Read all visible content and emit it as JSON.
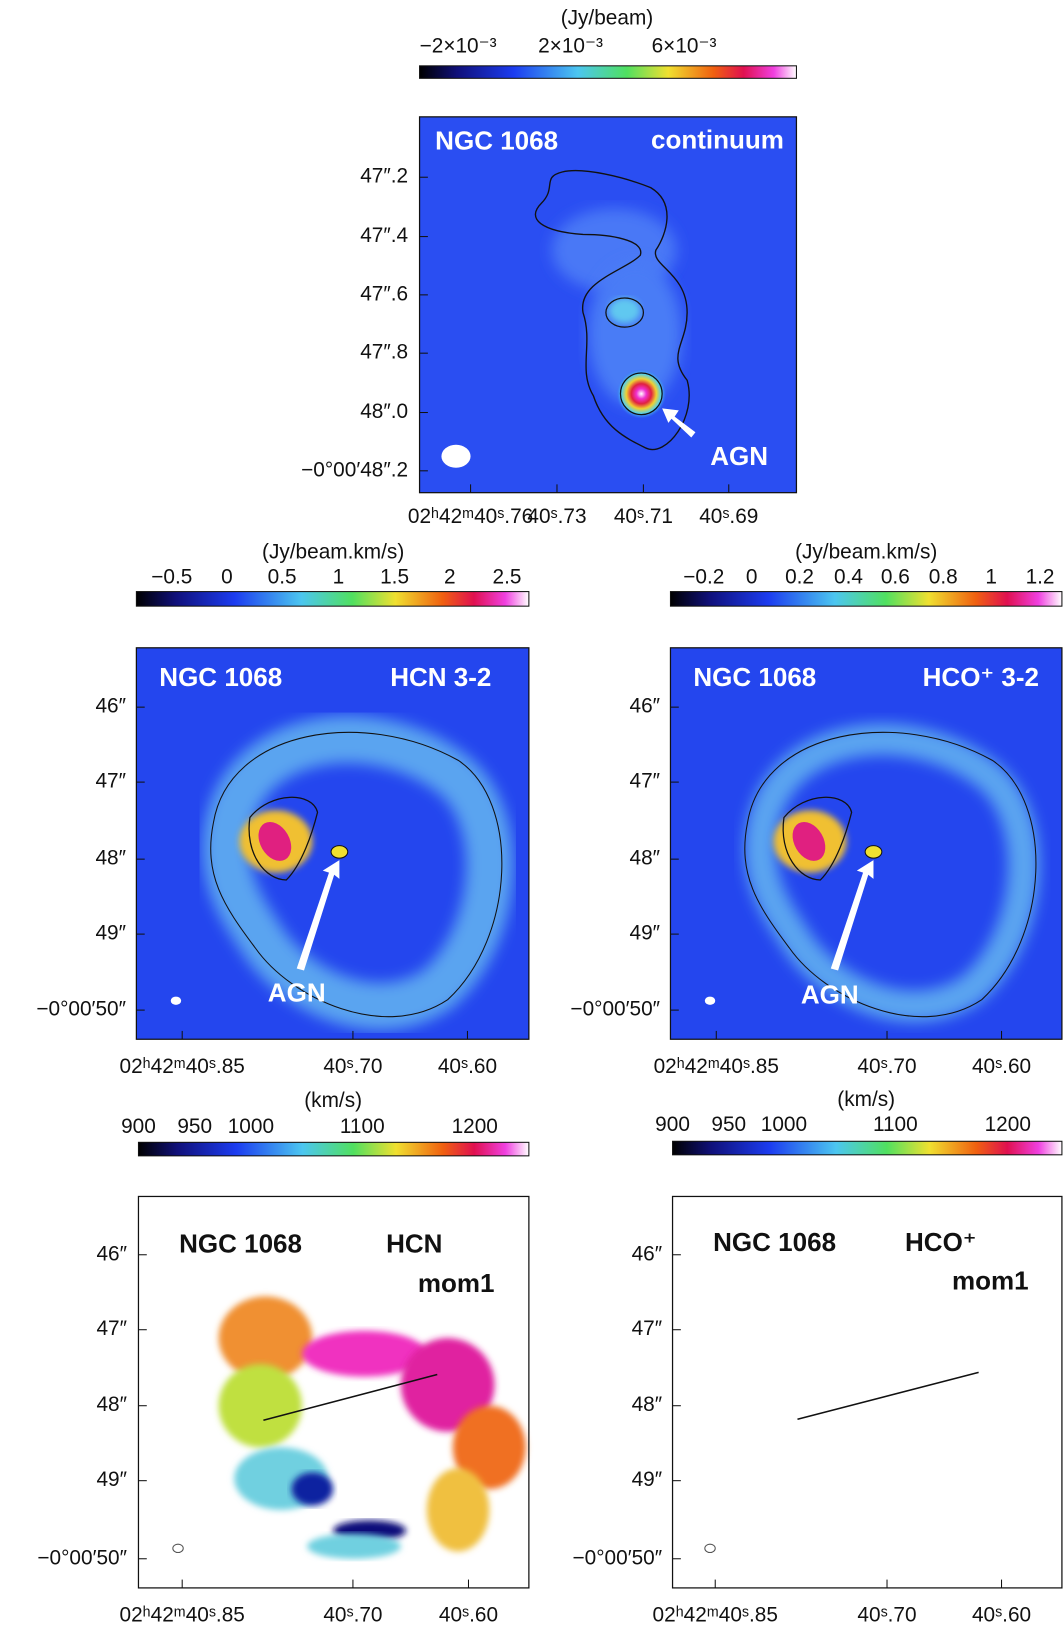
{
  "panels": [
    {
      "colorbar": {
        "unit": "(Jy/beam)",
        "ticks": [
          "−2×10⁻³",
          "2×10⁻³",
          "6×10⁻³"
        ]
      },
      "labels": {
        "galaxy": "NGC 1068",
        "line": "continuum"
      },
      "annotation": "AGN",
      "yticks": [
        "47″.2",
        "47″.4",
        "47″.6",
        "47″.8",
        "48″.0",
        "−0°00′48″.2"
      ],
      "xticks": [
        "02ʰ42ᵐ40ˢ.76",
        "40ˢ.73",
        "40ˢ.71",
        "40ˢ.69"
      ]
    },
    {
      "colorbar": {
        "unit": "(Jy/beam.km/s)",
        "ticks": [
          "−0.5",
          "0",
          "0.5",
          "1",
          "1.5",
          "2",
          "2.5"
        ]
      },
      "labels": {
        "galaxy": "NGC 1068",
        "line": "HCN 3-2"
      },
      "annotation": "AGN",
      "yticks": [
        "46″",
        "47″",
        "48″",
        "49″",
        "−0°00′50″"
      ],
      "xticks": [
        "02ʰ42ᵐ40ˢ.85",
        "40ˢ.70",
        "40ˢ.60"
      ]
    },
    {
      "colorbar": {
        "unit": "(Jy/beam.km/s)",
        "ticks": [
          "−0.2",
          "0",
          "0.2",
          "0.4",
          "0.6",
          "0.8",
          "1",
          "1.2"
        ]
      },
      "labels": {
        "galaxy": "NGC 1068",
        "line": "HCO⁺ 3-2"
      },
      "annotation": "AGN",
      "yticks": [
        "46″",
        "47″",
        "48″",
        "49″",
        "−0°00′50″"
      ],
      "xticks": [
        "02ʰ42ᵐ40ˢ.85",
        "40ˢ.70",
        "40ˢ.60"
      ]
    },
    {
      "colorbar": {
        "unit": "(km/s)",
        "ticks": [
          "900",
          "950",
          "1000",
          "1100",
          "1200"
        ]
      },
      "labels": {
        "galaxy": "NGC 1068",
        "line": "HCN",
        "moment": "mom1"
      },
      "yticks": [
        "46″",
        "47″",
        "48″",
        "49″",
        "−0°00′50″"
      ],
      "xticks": [
        "02ʰ42ᵐ40ˢ.85",
        "40ˢ.70",
        "40ˢ.60"
      ]
    },
    {
      "colorbar": {
        "unit": "(km/s)",
        "ticks": [
          "900",
          "950",
          "1000",
          "1100",
          "1200"
        ]
      },
      "labels": {
        "galaxy": "NGC 1068",
        "line": "HCO⁺",
        "moment": "mom1"
      },
      "yticks": [
        "46″",
        "47″",
        "48″",
        "49″",
        "−0°00′50″"
      ],
      "xticks": [
        "02ʰ42ᵐ40ˢ.85",
        "40ˢ.70",
        "40ˢ.60"
      ]
    }
  ]
}
